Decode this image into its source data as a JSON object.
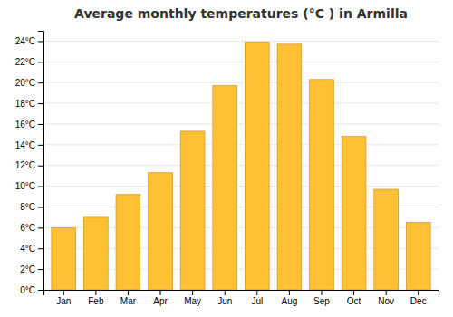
{
  "chart_data": {
    "type": "bar",
    "title": "Average monthly temperatures (°C ) in Armilla",
    "categories": [
      "Jan",
      "Feb",
      "Mar",
      "Apr",
      "May",
      "Jun",
      "Jul",
      "Aug",
      "Sep",
      "Oct",
      "Nov",
      "Dec"
    ],
    "values": [
      6.0,
      7.0,
      9.2,
      11.3,
      15.3,
      19.7,
      23.9,
      23.7,
      20.3,
      14.8,
      9.7,
      6.5
    ],
    "color": "#FFC133",
    "ylim": [
      0,
      25
    ],
    "yticks": [
      {
        "value": 0,
        "label": "0°C"
      },
      {
        "value": 2,
        "label": "2°C"
      },
      {
        "value": 4,
        "label": "4°C"
      },
      {
        "value": 6,
        "label": "6°C"
      },
      {
        "value": 8,
        "label": "8°C"
      },
      {
        "value": 10,
        "label": "10°C"
      },
      {
        "value": 12,
        "label": "12°C"
      },
      {
        "value": 14,
        "label": "14°C"
      },
      {
        "value": 16,
        "label": "16°C"
      },
      {
        "value": 18,
        "label": "18°C"
      },
      {
        "value": 20,
        "label": "20°C"
      },
      {
        "value": 22,
        "label": "22°C"
      },
      {
        "value": 24,
        "label": "24°C"
      }
    ],
    "grid": true
  }
}
